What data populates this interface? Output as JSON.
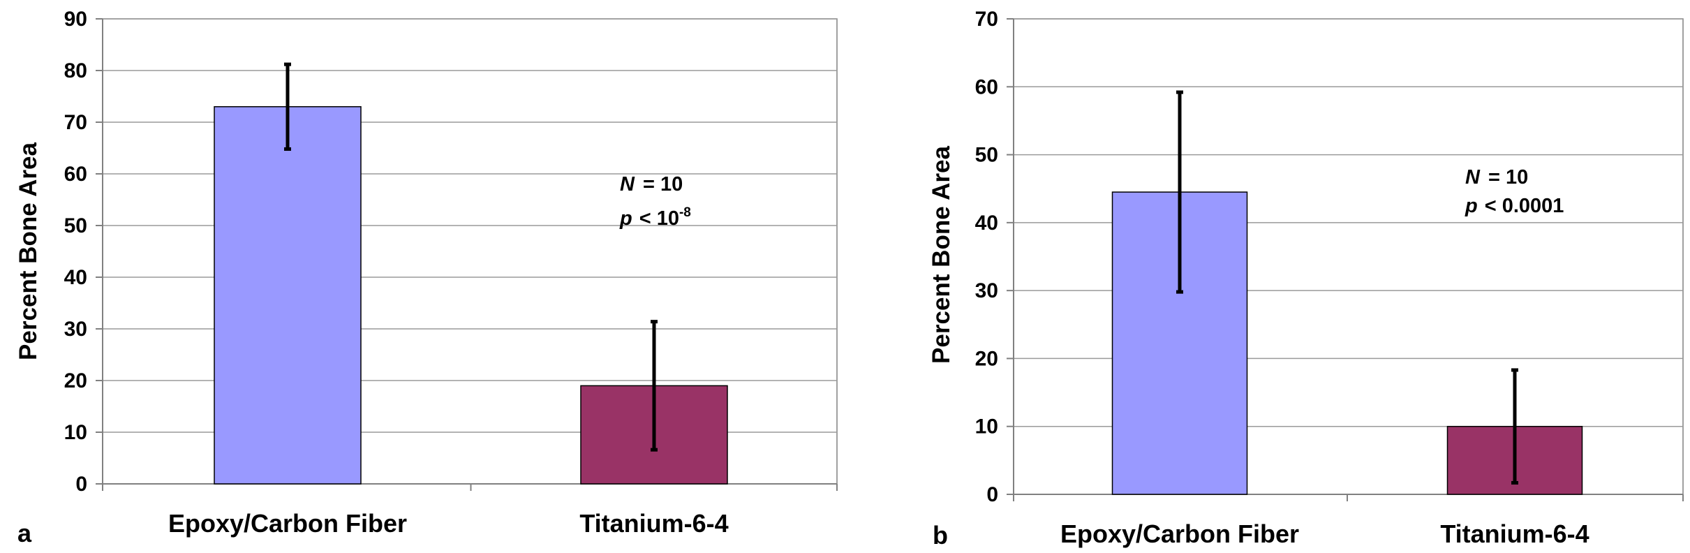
{
  "colors": {
    "bar1": "#9999FF",
    "bar2": "#993366",
    "grid": "#9a9a9a",
    "axis": "#808080",
    "ink": "#000000"
  },
  "chart_data": [
    {
      "type": "bar",
      "panel_label": "a",
      "ylabel": "Percent Bone Area",
      "categories": [
        "Epoxy/Carbon Fiber",
        "Titanium-6-4"
      ],
      "values": [
        73,
        19
      ],
      "errors": [
        8.2,
        12.4
      ],
      "ylim": [
        0,
        90
      ],
      "yticks": [
        "0",
        "10",
        "20",
        "30",
        "40",
        "50",
        "60",
        "70",
        "80",
        "90"
      ],
      "grid": true,
      "annotation": {
        "n_label": "N",
        "n_value": "= 10",
        "p_label": "p",
        "p_value": "< 10",
        "p_exponent": "-8"
      }
    },
    {
      "type": "bar",
      "panel_label": "b",
      "ylabel": "Percent Bone Area",
      "categories": [
        "Epoxy/Carbon Fiber",
        "Titanium-6-4"
      ],
      "values": [
        44.5,
        10
      ],
      "errors": [
        14.7,
        8.3
      ],
      "ylim": [
        0,
        70
      ],
      "yticks": [
        "0",
        "10",
        "20",
        "30",
        "40",
        "50",
        "60",
        "70"
      ],
      "grid": true,
      "annotation": {
        "n_label": "N",
        "n_value": "= 10",
        "p_label": "p",
        "p_value": "< 0.0001",
        "p_exponent": ""
      }
    }
  ]
}
